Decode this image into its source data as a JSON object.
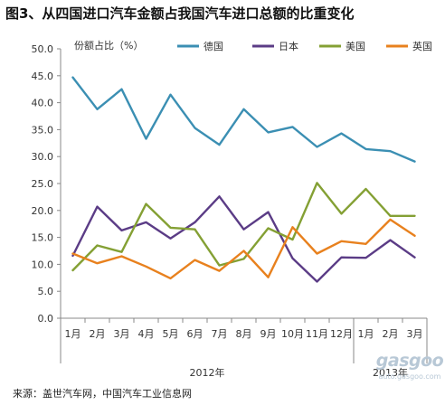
{
  "chart_data": {
    "type": "line",
    "title": "图3、从四国进口汽车金额占我国汽车进口总额的比重变化",
    "ylabel": "份额占比（%）",
    "xlabel": "",
    "ylim": [
      0,
      50
    ],
    "yticks": [
      "0.0",
      "5.0",
      "10.0",
      "15.0",
      "20.0",
      "25.0",
      "30.0",
      "35.0",
      "40.0",
      "45.0",
      "50.0"
    ],
    "grid": false,
    "legend_position": "top",
    "categories": [
      "1月",
      "2月",
      "3月",
      "4月",
      "5月",
      "6月",
      "7月",
      "8月",
      "9月",
      "10月",
      "11月",
      "12月",
      "1月",
      "2月",
      "3月"
    ],
    "year_groups": [
      {
        "label": "2012年",
        "start": 0,
        "end": 11
      },
      {
        "label": "2013年",
        "start": 12,
        "end": 14
      }
    ],
    "series": [
      {
        "name": "德国",
        "color": "#3b8fb3",
        "values": [
          44.7,
          38.8,
          42.5,
          33.3,
          41.5,
          35.3,
          32.2,
          38.8,
          34.5,
          35.5,
          31.8,
          34.3,
          31.4,
          31.0,
          29.1
        ]
      },
      {
        "name": "日本",
        "color": "#5b3c86",
        "values": [
          11.6,
          20.7,
          16.3,
          17.8,
          14.8,
          17.8,
          22.6,
          16.5,
          19.7,
          11.1,
          6.8,
          11.3,
          11.2,
          14.5,
          11.3
        ]
      },
      {
        "name": "美国",
        "color": "#84a034",
        "values": [
          8.9,
          13.5,
          12.3,
          21.2,
          16.8,
          16.5,
          9.8,
          11.0,
          16.7,
          14.6,
          25.1,
          19.4,
          24.0,
          19.0,
          19.0
        ]
      },
      {
        "name": "英国",
        "color": "#e8811e",
        "values": [
          12.0,
          10.2,
          11.5,
          9.6,
          7.4,
          10.8,
          8.8,
          12.5,
          7.6,
          16.9,
          12.0,
          14.3,
          13.8,
          18.3,
          15.3
        ]
      }
    ]
  },
  "source_text": "来源：盖世汽车网，中国汽车工业信息网",
  "watermark": {
    "main": "gasgoo",
    "sub": "auto.gasgoo.com"
  }
}
